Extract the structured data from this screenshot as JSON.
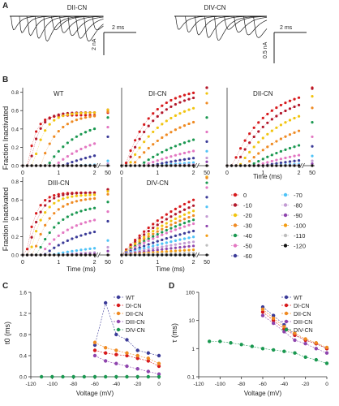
{
  "figure": {
    "panel_letters": [
      "A",
      "B",
      "C",
      "D"
    ],
    "panel_a": {
      "traces": [
        {
          "title": "DII-CN",
          "scalebar_time": "2 ms",
          "scalebar_current": "2 nA"
        },
        {
          "title": "DIV-CN",
          "scalebar_time": "2 ms",
          "scalebar_current": "0.5 nA"
        }
      ]
    },
    "panel_b": {
      "ylabel": "Fraction Inactivated",
      "xlabel": "Time (ms)",
      "xticks": [
        "0",
        "1",
        "2",
        "50"
      ],
      "yticks": [
        "0.0",
        "0.2",
        "0.4",
        "0.6",
        "0.8"
      ],
      "legend": {
        "labels": [
          "0",
          "-10",
          "-20",
          "-30",
          "-40",
          "-50",
          "-60",
          "-70",
          "-80",
          "-90",
          "-100",
          "-110",
          "-120"
        ],
        "colors": [
          "#d7191c",
          "#b2182b",
          "#f1c40f",
          "#ef8a22",
          "#1a9850",
          "#e377c2",
          "#3b3b98",
          "#4fc3f7",
          "#c39bd3",
          "#8e44ad",
          "#f39c12",
          "#bdbdbd",
          "#111111"
        ]
      }
    },
    "panel_c": {
      "ylabel": "t0 (ms)"
    },
    "panel_d": {
      "ylabel": "τ (ms)"
    }
  },
  "chart_data": [
    {
      "type": "scatter",
      "panel": "B",
      "title": "WT",
      "xlabel": "Time (ms)",
      "ylabel": "Fraction Inactivated",
      "ylim": [
        0,
        0.85
      ],
      "xlim": [
        0,
        2
      ],
      "extra_tick": "50",
      "series": [
        {
          "name": "0",
          "plateau": 0.55,
          "t0": 0.15,
          "tau": 0.2
        },
        {
          "name": "-10",
          "plateau": 0.58,
          "t0": 0.2,
          "tau": 0.25
        },
        {
          "name": "-20",
          "plateau": 0.58,
          "t0": 0.3,
          "tau": 0.3
        },
        {
          "name": "-30",
          "plateau": 0.56,
          "t0": 0.5,
          "tau": 0.45
        },
        {
          "name": "-40",
          "plateau": 0.5,
          "t0": 0.7,
          "tau": 0.8
        },
        {
          "name": "-50",
          "plateau": 0.4,
          "t0": 0.9,
          "tau": 1.2
        },
        {
          "name": "-60",
          "plateau": 0.3,
          "t0": 1.1,
          "tau": 2.0
        },
        {
          "name": "-70",
          "plateau": 0.05,
          "t0": 1.4,
          "tau": 3.0
        },
        {
          "name": "-80",
          "plateau": 0.02,
          "t0": 1.5,
          "tau": 4.0
        },
        {
          "name": "-90",
          "plateau": 0.0,
          "t0": 1.5,
          "tau": 5.0
        },
        {
          "name": "-100",
          "plateau": 0.0,
          "t0": 1.5,
          "tau": 5.0
        },
        {
          "name": "-110",
          "plateau": 0.0,
          "t0": 1.5,
          "tau": 5.0
        },
        {
          "name": "-120",
          "plateau": 0.0,
          "t0": 1.5,
          "tau": 5.0
        }
      ]
    },
    {
      "type": "scatter",
      "panel": "B",
      "title": "DI-CN",
      "xlabel": "Time (ms)",
      "ylabel": "Fraction Inactivated",
      "ylim": [
        0,
        0.85
      ],
      "xlim": [
        0,
        2
      ],
      "extra_tick": "50",
      "series": [
        {
          "name": "0",
          "plateau": 0.85,
          "t0": 0.1,
          "tau": 0.7
        },
        {
          "name": "-10",
          "plateau": 0.82,
          "t0": 0.15,
          "tau": 0.8
        },
        {
          "name": "-20",
          "plateau": 0.75,
          "t0": 0.2,
          "tau": 1.0
        },
        {
          "name": "-30",
          "plateau": 0.65,
          "t0": 0.3,
          "tau": 1.3
        },
        {
          "name": "-40",
          "plateau": 0.5,
          "t0": 0.5,
          "tau": 1.8
        },
        {
          "name": "-50",
          "plateau": 0.35,
          "t0": 0.6,
          "tau": 2.3
        },
        {
          "name": "-60",
          "plateau": 0.25,
          "t0": 0.8,
          "tau": 3.0
        },
        {
          "name": "-70",
          "plateau": 0.15,
          "t0": 1.0,
          "tau": 4.0
        },
        {
          "name": "-80",
          "plateau": 0.08,
          "t0": 1.2,
          "tau": 5.0
        },
        {
          "name": "-90",
          "plateau": 0.04,
          "t0": 1.3,
          "tau": 6.0
        },
        {
          "name": "-100",
          "plateau": 0.0,
          "t0": 1.5,
          "tau": 6.0
        },
        {
          "name": "-110",
          "plateau": 0.0,
          "t0": 1.5,
          "tau": 6.0
        },
        {
          "name": "-120",
          "plateau": 0.0,
          "t0": 1.5,
          "tau": 6.0
        }
      ]
    },
    {
      "type": "scatter",
      "panel": "B",
      "title": "DII-CN",
      "xlabel": "Time (ms)",
      "ylabel": "Fraction Inactivated",
      "ylim": [
        0,
        0.85
      ],
      "xlim": [
        0,
        2
      ],
      "extra_tick": "50",
      "series": [
        {
          "name": "0",
          "plateau": 0.85,
          "t0": 0.15,
          "tau": 0.9
        },
        {
          "name": "-10",
          "plateau": 0.8,
          "t0": 0.25,
          "tau": 1.0
        },
        {
          "name": "-20",
          "plateau": 0.72,
          "t0": 0.35,
          "tau": 1.2
        },
        {
          "name": "-30",
          "plateau": 0.6,
          "t0": 0.5,
          "tau": 1.5
        },
        {
          "name": "-40",
          "plateau": 0.45,
          "t0": 0.65,
          "tau": 2.0
        },
        {
          "name": "-50",
          "plateau": 0.3,
          "t0": 0.8,
          "tau": 2.5
        },
        {
          "name": "-60",
          "plateau": 0.2,
          "t0": 1.0,
          "tau": 3.0
        },
        {
          "name": "-70",
          "plateau": 0.1,
          "t0": 1.2,
          "tau": 4.0
        },
        {
          "name": "-80",
          "plateau": 0.05,
          "t0": 1.3,
          "tau": 5.0
        },
        {
          "name": "-90",
          "plateau": 0.02,
          "t0": 1.4,
          "tau": 6.0
        },
        {
          "name": "-100",
          "plateau": 0.0,
          "t0": 1.5,
          "tau": 6.0
        },
        {
          "name": "-110",
          "plateau": 0.0,
          "t0": 1.5,
          "tau": 6.0
        },
        {
          "name": "-120",
          "plateau": 0.0,
          "t0": 1.5,
          "tau": 6.0
        }
      ]
    },
    {
      "type": "scatter",
      "panel": "B",
      "title": "DIII-CN",
      "xlabel": "Time (ms)",
      "ylabel": "Fraction Inactivated",
      "ylim": [
        0,
        0.85
      ],
      "xlim": [
        0,
        2
      ],
      "extra_tick": "50",
      "series": [
        {
          "name": "0",
          "plateau": 0.68,
          "t0": 0.1,
          "tau": 0.25
        },
        {
          "name": "-10",
          "plateau": 0.68,
          "t0": 0.15,
          "tau": 0.3
        },
        {
          "name": "-20",
          "plateau": 0.66,
          "t0": 0.2,
          "tau": 0.35
        },
        {
          "name": "-30",
          "plateau": 0.63,
          "t0": 0.3,
          "tau": 0.45
        },
        {
          "name": "-40",
          "plateau": 0.55,
          "t0": 0.4,
          "tau": 0.6
        },
        {
          "name": "-50",
          "plateau": 0.45,
          "t0": 0.5,
          "tau": 0.8
        },
        {
          "name": "-60",
          "plateau": 0.35,
          "t0": 0.6,
          "tau": 1.1
        },
        {
          "name": "-70",
          "plateau": 0.15,
          "t0": 0.8,
          "tau": 1.8
        },
        {
          "name": "-80",
          "plateau": 0.08,
          "t0": 1.0,
          "tau": 2.5
        },
        {
          "name": "-90",
          "plateau": 0.04,
          "t0": 1.2,
          "tau": 3.0
        },
        {
          "name": "-100",
          "plateau": 0.0,
          "t0": 1.5,
          "tau": 5.0
        },
        {
          "name": "-110",
          "plateau": 0.0,
          "t0": 1.5,
          "tau": 5.0
        },
        {
          "name": "-120",
          "plateau": 0.0,
          "t0": 1.5,
          "tau": 5.0
        }
      ]
    },
    {
      "type": "scatter",
      "panel": "B",
      "title": "DIV-CN",
      "xlabel": "Time (ms)",
      "ylabel": "Fraction Inactivated",
      "ylim": [
        0,
        0.85
      ],
      "xlim": [
        0,
        2
      ],
      "extra_tick": "50",
      "series": [
        {
          "name": "0",
          "plateau": 0.95,
          "t0": 0.0,
          "tau": 2.0
        },
        {
          "name": "-10",
          "plateau": 0.9,
          "t0": 0.0,
          "tau": 2.2
        },
        {
          "name": "-20",
          "plateau": 0.85,
          "t0": 0.0,
          "tau": 2.4
        },
        {
          "name": "-30",
          "plateau": 0.8,
          "t0": 0.0,
          "tau": 2.6
        },
        {
          "name": "-40",
          "plateau": 0.75,
          "t0": 0.0,
          "tau": 2.8
        },
        {
          "name": "-50",
          "plateau": 0.7,
          "t0": 0.0,
          "tau": 3.0
        },
        {
          "name": "-60",
          "plateau": 0.6,
          "t0": 0.0,
          "tau": 3.5
        },
        {
          "name": "-70",
          "plateau": 0.5,
          "t0": 0.0,
          "tau": 4.0
        },
        {
          "name": "-80",
          "plateau": 0.4,
          "t0": 0.0,
          "tau": 4.5
        },
        {
          "name": "-90",
          "plateau": 0.3,
          "t0": 0.0,
          "tau": 5.0
        },
        {
          "name": "-100",
          "plateau": 0.2,
          "t0": 0.0,
          "tau": 6.0
        },
        {
          "name": "-110",
          "plateau": 0.1,
          "t0": 0.0,
          "tau": 8.0
        },
        {
          "name": "-120",
          "plateau": 0.0,
          "t0": 0.0,
          "tau": 8.0
        }
      ]
    },
    {
      "type": "line",
      "panel": "C",
      "xlabel": "Voltage (mV)",
      "ylabel": "t0 (ms)",
      "xlim": [
        -120,
        0
      ],
      "ylim": [
        0,
        1.6
      ],
      "xticks": [
        -120,
        -100,
        -80,
        -60,
        -40,
        -20,
        0
      ],
      "yticks": [
        0.0,
        0.4,
        0.8,
        1.2,
        1.6
      ],
      "series": [
        {
          "name": "WT",
          "x": [
            -60,
            -50,
            -40,
            -30,
            -20,
            -10,
            0
          ],
          "y": [
            0.6,
            1.4,
            0.8,
            0.7,
            0.5,
            0.45,
            0.4
          ]
        },
        {
          "name": "DI-CN",
          "x": [
            -60,
            -50,
            -40,
            -30,
            -20,
            -10,
            0
          ],
          "y": [
            0.5,
            0.45,
            0.42,
            0.4,
            0.35,
            0.3,
            0.2
          ]
        },
        {
          "name": "DII-CN",
          "x": [
            -60,
            -50,
            -40,
            -30,
            -20,
            -10,
            0
          ],
          "y": [
            0.65,
            0.55,
            0.5,
            0.45,
            0.4,
            0.35,
            0.25
          ]
        },
        {
          "name": "DIII-CN",
          "x": [
            -60,
            -50,
            -40,
            -30,
            -20,
            -10,
            0
          ],
          "y": [
            0.4,
            0.3,
            0.25,
            0.2,
            0.15,
            0.1,
            0.05
          ]
        },
        {
          "name": "DIV-CN",
          "x": [
            -110,
            -100,
            -90,
            -80,
            -70,
            -60,
            -50,
            -40,
            -30,
            -20,
            -10,
            0
          ],
          "y": [
            0,
            0,
            0,
            0,
            0,
            0,
            0,
            0,
            0,
            0,
            0,
            0
          ]
        }
      ]
    },
    {
      "type": "line",
      "panel": "D",
      "xlabel": "Voltage (mV)",
      "ylabel": "τ (ms)",
      "xlim": [
        -120,
        0
      ],
      "ylim": [
        0.1,
        100
      ],
      "yscale": "log",
      "xticks": [
        -120,
        -100,
        -80,
        -60,
        -40,
        -20,
        0
      ],
      "yticks": [
        0.1,
        1,
        10,
        100
      ],
      "series": [
        {
          "name": "WT",
          "x": [
            -60,
            -50,
            -40,
            -30,
            -20,
            -10,
            0
          ],
          "y": [
            30,
            15,
            7,
            3,
            2,
            1.5,
            1
          ]
        },
        {
          "name": "DI-CN",
          "x": [
            -60,
            -50,
            -40,
            -30,
            -20,
            -10,
            0
          ],
          "y": [
            20,
            10,
            5,
            3,
            2,
            1.5,
            1
          ]
        },
        {
          "name": "DII-CN",
          "x": [
            -60,
            -50,
            -40,
            -30,
            -20,
            -10,
            0
          ],
          "y": [
            25,
            12,
            6,
            3.5,
            2.2,
            1.6,
            1.1
          ]
        },
        {
          "name": "DIII-CN",
          "x": [
            -60,
            -50,
            -40,
            -30,
            -20,
            -10,
            0
          ],
          "y": [
            15,
            8,
            4,
            2,
            1.5,
            1,
            0.7
          ]
        },
        {
          "name": "DIV-CN",
          "x": [
            -110,
            -100,
            -90,
            -80,
            -70,
            -60,
            -50,
            -40,
            -30,
            -20,
            -10,
            0
          ],
          "y": [
            1.8,
            1.8,
            1.6,
            1.4,
            1.2,
            1.0,
            0.9,
            0.8,
            0.7,
            0.5,
            0.4,
            0.3
          ]
        }
      ]
    }
  ]
}
